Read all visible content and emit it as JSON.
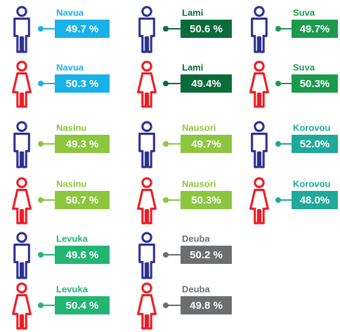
{
  "groups": [
    {
      "name": "Navua",
      "male": "49.7 %",
      "female": "50.3  %",
      "color": "#1ab0e8"
    },
    {
      "name": "Lami",
      "male": "50.6 %",
      "female": "49.4%",
      "color": "#0b6b3a"
    },
    {
      "name": "Suva",
      "male": "49.7%",
      "female": "50.3%",
      "color": "#1c9a4b"
    },
    {
      "name": "Nasinu",
      "male": "49.3 %",
      "female": "50.7 %",
      "color": "#8cc63f"
    },
    {
      "name": "Nausori",
      "male": "49.7%",
      "female": "50.3%",
      "color": "#8cc63f"
    },
    {
      "name": "Korovou",
      "male": "52.0%",
      "female": "48.0%",
      "color": "#1fa99a"
    },
    {
      "name": "Levuka",
      "male": "49.6 %",
      "female": "50.4 %",
      "color": "#23b574"
    },
    {
      "name": "Deuba",
      "male": "50.2 %",
      "female": "49.8 %",
      "color": "#6d6e70"
    }
  ]
}
